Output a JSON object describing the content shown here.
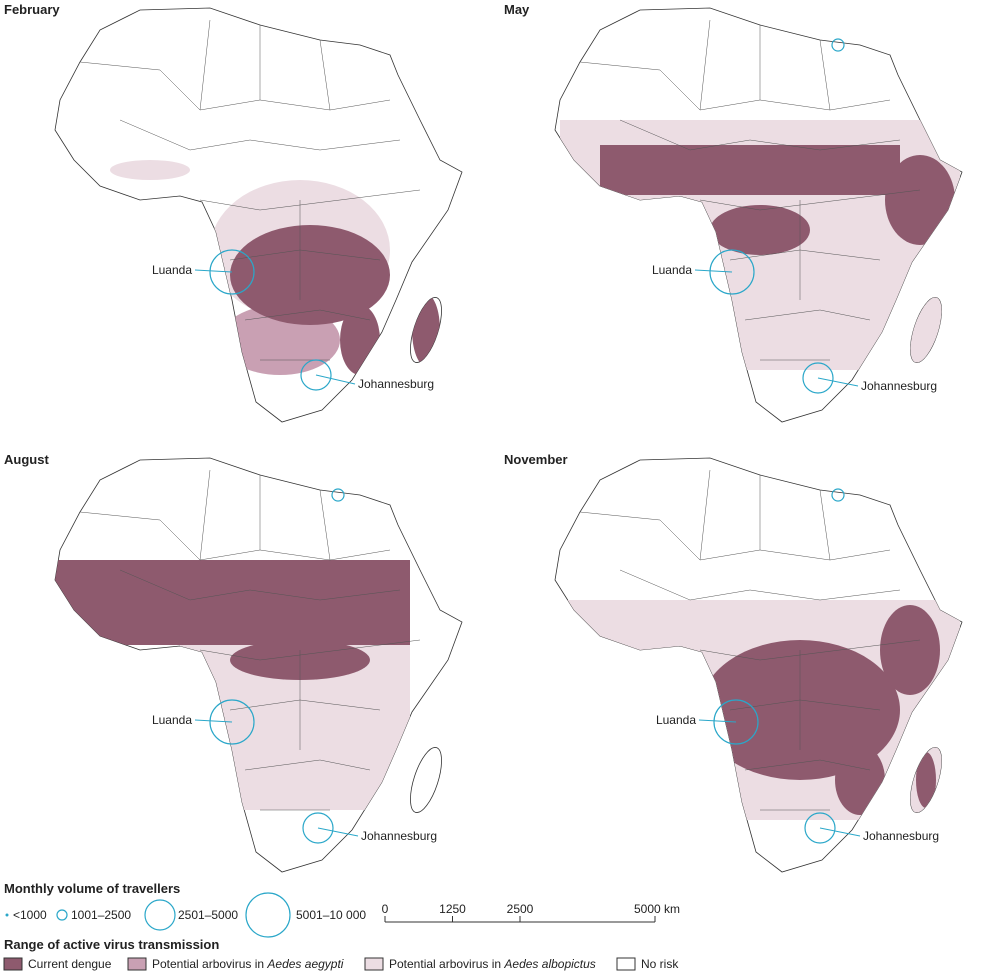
{
  "panels": [
    {
      "title": "February",
      "cities": [
        "Luanda",
        "Johannesburg"
      ]
    },
    {
      "title": "May",
      "cities": [
        "Luanda",
        "Johannesburg"
      ]
    },
    {
      "title": "August",
      "cities": [
        "Luanda",
        "Johannesburg"
      ]
    },
    {
      "title": "November",
      "cities": [
        "Luanda",
        "Johannesburg"
      ]
    }
  ],
  "legend": {
    "travellers": {
      "title": "Monthly volume of travellers",
      "items": [
        "<1000",
        "1001–2500",
        "2501–5000",
        "5001–10 000"
      ]
    },
    "transmission": {
      "title": "Range of active virus transmission",
      "items": [
        {
          "text": "Current dengue"
        },
        {
          "text": "Potential arbovirus in ",
          "species": "Aedes aegypti"
        },
        {
          "text": "Potential arbovirus in ",
          "species": "Aedes albopictus"
        },
        {
          "text": "No risk"
        }
      ]
    }
  },
  "scale_bar": {
    "ticks": [
      0,
      1250,
      2500,
      {
        "value": 5000,
        "label": "5000 km"
      }
    ]
  }
}
